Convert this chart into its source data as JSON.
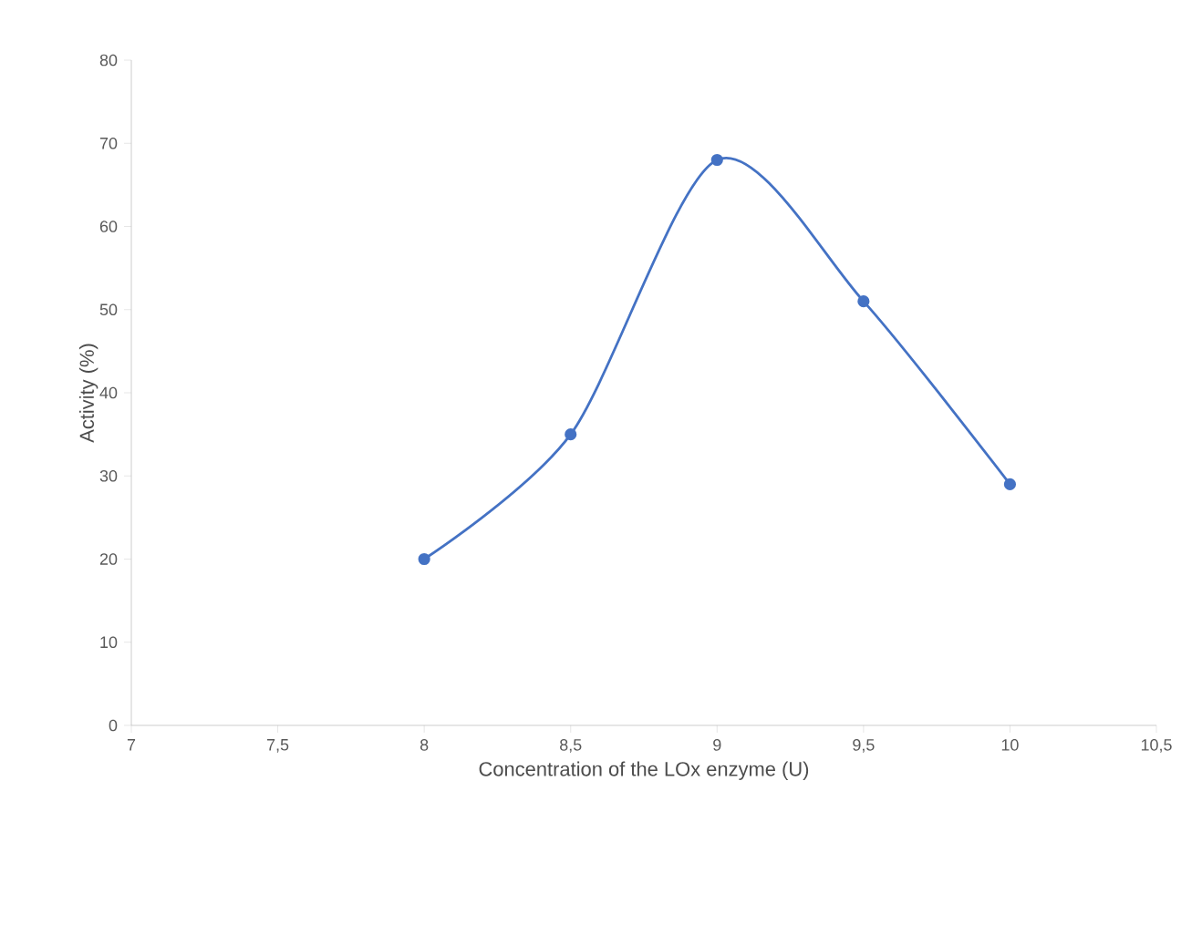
{
  "chart_data": {
    "type": "line",
    "xlabel": "Concentration of the LOx enzyme (U)",
    "ylabel": "Activity (%)",
    "x": [
      8,
      8.5,
      9,
      9.5,
      10
    ],
    "series": [
      {
        "color": "#4472c4",
        "values": [
          20,
          35,
          68,
          51,
          29
        ]
      }
    ],
    "xlim": [
      7,
      10.5
    ],
    "xticks": [
      7,
      {
        "value": 7.5,
        "label": "7,5"
      },
      8,
      {
        "value": 8.5,
        "label": "8,5"
      },
      9,
      {
        "value": 9.5,
        "label": "9,5"
      },
      10,
      {
        "value": 10.5,
        "label": "10,5"
      }
    ],
    "ylim": [
      0,
      80
    ],
    "yticks": [
      0,
      10,
      20,
      30,
      40,
      50,
      60,
      70,
      80
    ],
    "marker": "circle",
    "line_style": "solid"
  }
}
